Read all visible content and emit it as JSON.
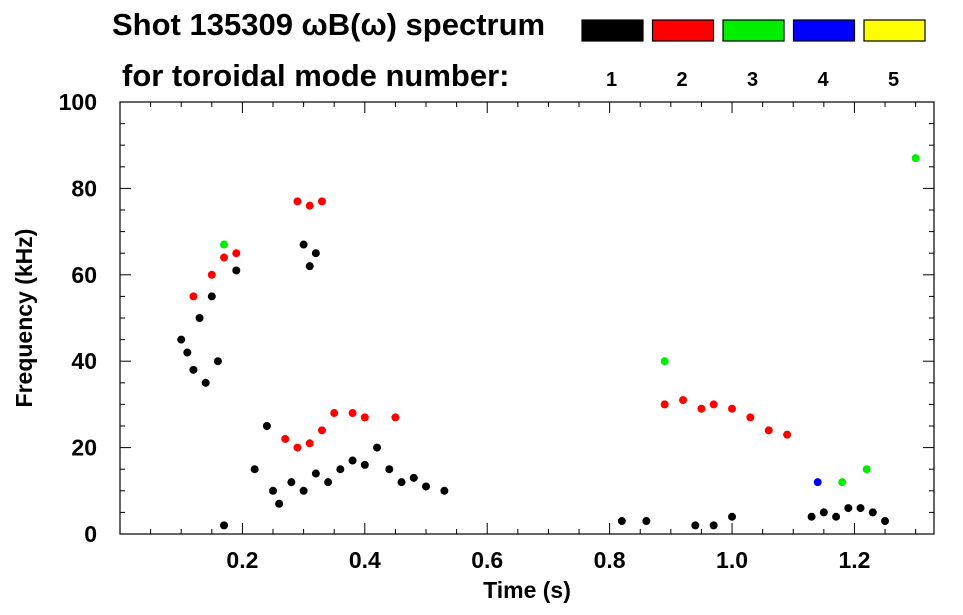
{
  "chart_data": {
    "type": "scatter",
    "title": "Shot 135309 ωB(ω) spectrum",
    "subtitle": "for toroidal mode number:",
    "xlabel": "Time (s)",
    "ylabel": "Frequency (kHz)",
    "xlim": [
      0.0,
      1.33
    ],
    "ylim": [
      0,
      100
    ],
    "x_ticks": [
      "0.2",
      "0.4",
      "0.6",
      "0.8",
      "1.0",
      "1.2"
    ],
    "y_ticks": [
      "0",
      "20",
      "40",
      "60",
      "80",
      "100"
    ],
    "grid": false,
    "legend_position": "top-right",
    "legend": [
      {
        "label": "1",
        "color": "#000000"
      },
      {
        "label": "2",
        "color": "#ff0000"
      },
      {
        "label": "3",
        "color": "#00ee00"
      },
      {
        "label": "4",
        "color": "#0000ff"
      },
      {
        "label": "5",
        "color": "#ffff00"
      }
    ],
    "series": [
      {
        "name": "1",
        "color": "#000000",
        "points": [
          [
            0.1,
            45
          ],
          [
            0.11,
            42
          ],
          [
            0.12,
            38
          ],
          [
            0.13,
            50
          ],
          [
            0.14,
            35
          ],
          [
            0.15,
            55
          ],
          [
            0.16,
            40
          ],
          [
            0.17,
            2
          ],
          [
            0.19,
            61
          ],
          [
            0.22,
            15
          ],
          [
            0.24,
            25
          ],
          [
            0.25,
            10
          ],
          [
            0.26,
            7
          ],
          [
            0.28,
            12
          ],
          [
            0.3,
            10
          ],
          [
            0.32,
            14
          ],
          [
            0.34,
            12
          ],
          [
            0.36,
            15
          ],
          [
            0.38,
            17
          ],
          [
            0.4,
            16
          ],
          [
            0.42,
            20
          ],
          [
            0.44,
            15
          ],
          [
            0.46,
            12
          ],
          [
            0.48,
            13
          ],
          [
            0.5,
            11
          ],
          [
            0.53,
            10
          ],
          [
            0.3,
            67
          ],
          [
            0.32,
            65
          ],
          [
            0.31,
            62
          ],
          [
            0.82,
            3
          ],
          [
            0.86,
            3
          ],
          [
            0.94,
            2
          ],
          [
            0.97,
            2
          ],
          [
            1.0,
            4
          ],
          [
            1.13,
            4
          ],
          [
            1.15,
            5
          ],
          [
            1.17,
            4
          ],
          [
            1.19,
            6
          ],
          [
            1.21,
            6
          ],
          [
            1.23,
            5
          ],
          [
            1.25,
            3
          ]
        ]
      },
      {
        "name": "2",
        "color": "#ff0000",
        "points": [
          [
            0.12,
            55
          ],
          [
            0.15,
            60
          ],
          [
            0.17,
            64
          ],
          [
            0.19,
            65
          ],
          [
            0.27,
            22
          ],
          [
            0.29,
            20
          ],
          [
            0.31,
            21
          ],
          [
            0.33,
            24
          ],
          [
            0.35,
            28
          ],
          [
            0.38,
            28
          ],
          [
            0.4,
            27
          ],
          [
            0.45,
            27
          ],
          [
            0.29,
            77
          ],
          [
            0.31,
            76
          ],
          [
            0.33,
            77
          ],
          [
            0.89,
            30
          ],
          [
            0.92,
            31
          ],
          [
            0.95,
            29
          ],
          [
            0.97,
            30
          ],
          [
            1.0,
            29
          ],
          [
            1.03,
            27
          ],
          [
            1.06,
            24
          ],
          [
            1.09,
            23
          ]
        ]
      },
      {
        "name": "3",
        "color": "#00ee00",
        "points": [
          [
            0.17,
            67
          ],
          [
            0.89,
            40
          ],
          [
            1.18,
            12
          ],
          [
            1.22,
            15
          ],
          [
            1.3,
            87
          ]
        ]
      },
      {
        "name": "4",
        "color": "#0000ff",
        "points": [
          [
            1.14,
            12
          ]
        ]
      },
      {
        "name": "5",
        "color": "#ffff00",
        "points": []
      }
    ]
  }
}
